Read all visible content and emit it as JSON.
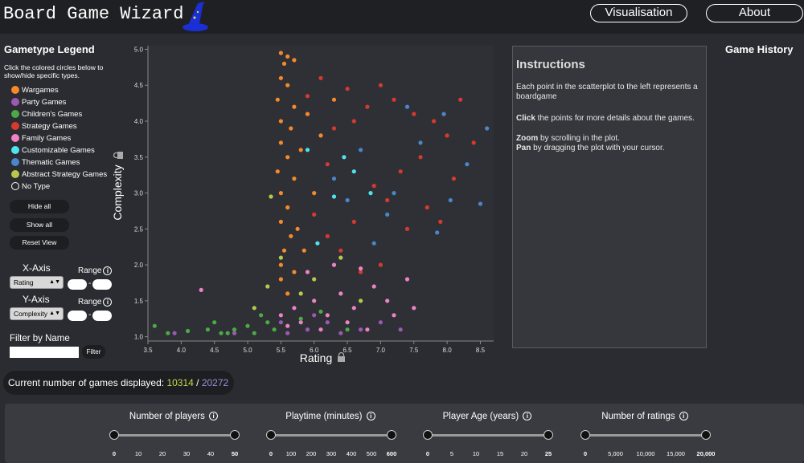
{
  "app": {
    "title": "Board Game Wizard"
  },
  "nav": {
    "visualisation": "Visualisation",
    "about": "About"
  },
  "legend": {
    "title": "Gametype Legend",
    "hint": "Click the colored circles below to show/hide specific types.",
    "items": [
      {
        "label": "Wargames",
        "color": "#f5892b"
      },
      {
        "label": "Party Games",
        "color": "#9b59b6"
      },
      {
        "label": "Children's Games",
        "color": "#4caa45"
      },
      {
        "label": "Strategy Games",
        "color": "#d63a2f"
      },
      {
        "label": "Family Games",
        "color": "#ee82c4"
      },
      {
        "label": "Customizable Games",
        "color": "#4fe3f0"
      },
      {
        "label": "Thematic Games",
        "color": "#4a86c8"
      },
      {
        "label": "Abstract Strategy Games",
        "color": "#b6c94a"
      },
      {
        "label": "No Type",
        "color": "none"
      }
    ]
  },
  "controls": {
    "hide_all": "Hide all",
    "show_all": "Show all",
    "reset_view": "Reset View",
    "x_axis_label": "X-Axis",
    "y_axis_label": "Y-Axis",
    "range_label": "Range",
    "x_axis_value": "Rating",
    "y_axis_value": "Complexity",
    "range_separator": "-",
    "filter_label": "Filter by Name",
    "filter_placeholder": "",
    "filter_button": "Filter"
  },
  "chart_data": {
    "type": "scatter",
    "xlabel": "Rating",
    "ylabel": "Complexity",
    "xlim": [
      3.5,
      8.7
    ],
    "ylim": [
      0.94,
      5.05
    ],
    "xticks": [
      "3.5",
      "4.0",
      "4.5",
      "5.0",
      "5.5",
      "6.0",
      "6.5",
      "7.0",
      "7.5",
      "8.0",
      "8.5"
    ],
    "yticks": [
      "1.0",
      "1.5",
      "2.0",
      "2.5",
      "3.0",
      "3.5",
      "4.0",
      "4.5",
      "5.0"
    ],
    "series": [
      {
        "name": "Wargames",
        "color": "#f5892b",
        "points": [
          [
            5.5,
            4.95
          ],
          [
            5.6,
            4.9
          ],
          [
            5.55,
            4.8
          ],
          [
            5.7,
            4.85
          ],
          [
            5.5,
            4.6
          ],
          [
            5.6,
            4.5
          ],
          [
            5.45,
            4.3
          ],
          [
            5.7,
            4.2
          ],
          [
            5.5,
            4.0
          ],
          [
            5.65,
            3.9
          ],
          [
            5.5,
            3.7
          ],
          [
            5.6,
            3.5
          ],
          [
            5.45,
            3.3
          ],
          [
            5.7,
            3.2
          ],
          [
            5.5,
            3.0
          ],
          [
            5.6,
            2.8
          ],
          [
            5.5,
            2.6
          ],
          [
            5.65,
            2.4
          ],
          [
            5.55,
            2.2
          ],
          [
            5.5,
            2.0
          ],
          [
            5.7,
            1.9
          ],
          [
            5.8,
            3.6
          ],
          [
            5.9,
            4.1
          ],
          [
            6.0,
            3.0
          ],
          [
            5.75,
            2.5
          ],
          [
            6.1,
            3.8
          ],
          [
            6.3,
            4.3
          ],
          [
            5.85,
            2.2
          ],
          [
            5.5,
            1.8
          ],
          [
            5.6,
            1.6
          ]
        ]
      },
      {
        "name": "Strategy Games",
        "color": "#d63a2f",
        "points": [
          [
            6.5,
            4.45
          ],
          [
            7.0,
            4.5
          ],
          [
            7.2,
            4.3
          ],
          [
            6.8,
            4.2
          ],
          [
            7.5,
            4.1
          ],
          [
            7.8,
            4.0
          ],
          [
            8.2,
            4.3
          ],
          [
            8.0,
            3.8
          ],
          [
            7.6,
            3.5
          ],
          [
            8.4,
            3.7
          ],
          [
            7.3,
            3.3
          ],
          [
            6.9,
            3.1
          ],
          [
            7.1,
            2.9
          ],
          [
            7.7,
            2.8
          ],
          [
            6.6,
            2.6
          ],
          [
            6.2,
            2.4
          ],
          [
            7.4,
            2.5
          ],
          [
            6.4,
            2.2
          ],
          [
            7.0,
            2.0
          ],
          [
            6.7,
            1.9
          ],
          [
            8.1,
            3.2
          ],
          [
            6.3,
            3.9
          ],
          [
            5.9,
            4.35
          ],
          [
            6.2,
            3.4
          ],
          [
            6.0,
            2.7
          ],
          [
            7.9,
            2.6
          ],
          [
            6.1,
            4.6
          ],
          [
            6.6,
            4.0
          ]
        ]
      },
      {
        "name": "Thematic Games",
        "color": "#4a86c8",
        "points": [
          [
            8.6,
            3.9
          ],
          [
            8.5,
            2.85
          ],
          [
            8.3,
            3.4
          ],
          [
            7.95,
            4.1
          ],
          [
            7.85,
            2.45
          ],
          [
            7.6,
            3.7
          ],
          [
            7.2,
            3.0
          ],
          [
            6.9,
            2.3
          ],
          [
            6.7,
            3.6
          ],
          [
            7.1,
            2.7
          ],
          [
            6.5,
            2.9
          ],
          [
            8.05,
            2.9
          ],
          [
            7.4,
            4.2
          ],
          [
            6.3,
            3.2
          ]
        ]
      },
      {
        "name": "Family Games",
        "color": "#ee82c4",
        "points": [
          [
            5.5,
            1.3
          ],
          [
            5.7,
            1.4
          ],
          [
            6.0,
            1.5
          ],
          [
            6.2,
            1.3
          ],
          [
            6.4,
            1.6
          ],
          [
            6.6,
            1.4
          ],
          [
            6.9,
            1.7
          ],
          [
            7.1,
            1.5
          ],
          [
            7.4,
            1.8
          ],
          [
            5.8,
            1.2
          ],
          [
            6.1,
            1.1
          ],
          [
            6.5,
            1.2
          ],
          [
            6.8,
            1.1
          ],
          [
            7.2,
            1.3
          ],
          [
            5.9,
            1.9
          ],
          [
            6.3,
            2.0
          ],
          [
            4.3,
            1.65
          ],
          [
            5.6,
            1.15
          ],
          [
            6.7,
            1.95
          ],
          [
            7.5,
            1.4
          ]
        ]
      },
      {
        "name": "Party Games",
        "color": "#9b59b6",
        "points": [
          [
            5.6,
            1.05
          ],
          [
            5.9,
            1.1
          ],
          [
            6.2,
            1.2
          ],
          [
            6.4,
            1.05
          ],
          [
            6.7,
            1.1
          ],
          [
            7.0,
            1.2
          ],
          [
            5.5,
            1.2
          ],
          [
            4.8,
            1.05
          ],
          [
            3.9,
            1.05
          ],
          [
            6.0,
            1.3
          ],
          [
            7.3,
            1.1
          ]
        ]
      },
      {
        "name": "Children's Games",
        "color": "#4caa45",
        "points": [
          [
            3.6,
            1.15
          ],
          [
            3.8,
            1.05
          ],
          [
            4.1,
            1.08
          ],
          [
            4.4,
            1.1
          ],
          [
            4.6,
            1.05
          ],
          [
            4.8,
            1.1
          ],
          [
            5.0,
            1.15
          ],
          [
            5.1,
            1.05
          ],
          [
            5.3,
            1.2
          ],
          [
            4.5,
            1.2
          ],
          [
            4.7,
            1.05
          ],
          [
            5.2,
            1.3
          ],
          [
            5.4,
            1.1
          ],
          [
            5.8,
            1.25
          ],
          [
            6.1,
            1.35
          ],
          [
            6.5,
            1.1
          ]
        ]
      },
      {
        "name": "Customizable Games",
        "color": "#4fe3f0",
        "points": [
          [
            5.9,
            3.6
          ],
          [
            6.3,
            2.95
          ],
          [
            6.45,
            3.5
          ],
          [
            6.85,
            3.0
          ],
          [
            6.05,
            2.3
          ],
          [
            6.6,
            3.3
          ]
        ]
      },
      {
        "name": "Abstract Strategy Games",
        "color": "#b6c94a",
        "points": [
          [
            5.3,
            1.7
          ],
          [
            5.5,
            2.1
          ],
          [
            5.8,
            1.6
          ],
          [
            6.0,
            1.8
          ],
          [
            6.4,
            2.1
          ],
          [
            6.7,
            1.5
          ],
          [
            5.35,
            2.95
          ],
          [
            5.1,
            1.4
          ]
        ]
      }
    ]
  },
  "instructions": {
    "title": "Instructions",
    "para1": "Each point in the scatterplot to the left represents a boardgame",
    "click_bold": "Click",
    "click_text": " the points for more details about the games.",
    "zoom_bold": "Zoom",
    "zoom_text": " by scrolling in the plot.",
    "pan_bold": "Pan",
    "pan_text": " by dragging the plot with your cursor."
  },
  "history": {
    "title": "Game History"
  },
  "count": {
    "label": "Current number of games displayed: ",
    "shown": "10314",
    "separator": " / ",
    "total": "20272"
  },
  "filters": [
    {
      "title": "Number of players",
      "ticks": [
        "0",
        "10",
        "20",
        "30",
        "40",
        "50"
      ],
      "min": 0,
      "max": 50
    },
    {
      "title": "Playtime (minutes)",
      "ticks": [
        "0",
        "100",
        "200",
        "300",
        "400",
        "500",
        "600"
      ],
      "min": 0,
      "max": 600
    },
    {
      "title": "Player Age (years)",
      "ticks": [
        "0",
        "5",
        "10",
        "15",
        "20",
        "25"
      ],
      "min": 0,
      "max": 25
    },
    {
      "title": "Number of ratings",
      "ticks": [
        "0",
        "5,000",
        "10,000",
        "15,000",
        "20,000"
      ],
      "min": 0,
      "max": 20000
    }
  ],
  "icons": {
    "info": "i",
    "lock": "lock-icon",
    "wizard": "wizard-hat-icon"
  }
}
